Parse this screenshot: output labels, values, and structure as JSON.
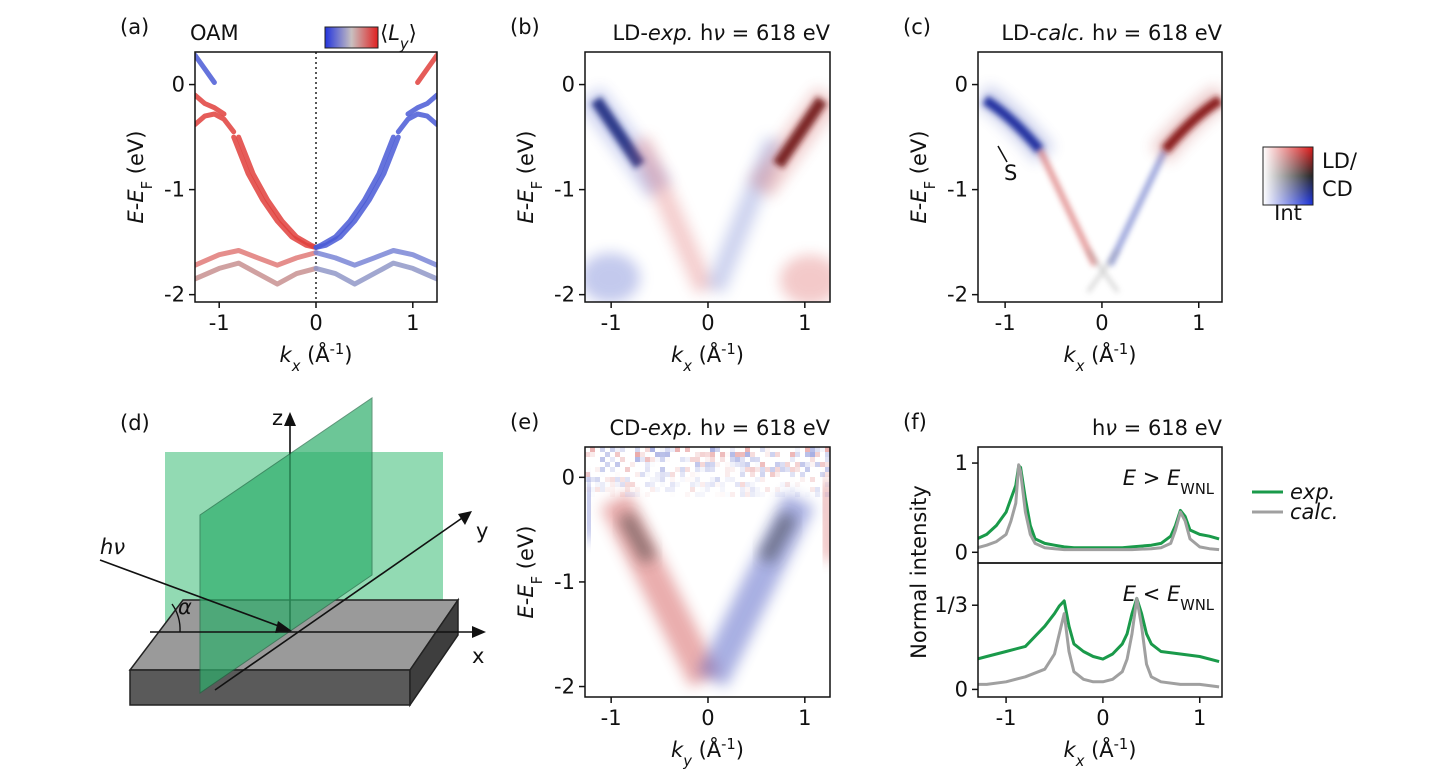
{
  "chart_data": [
    {
      "type": "line",
      "panel_label": "(a)",
      "title": "OAM",
      "colorbar_label": [
        {
          "t": "⟨"
        },
        {
          "t": "L",
          "it": true
        },
        {
          "t": "y",
          "it": true,
          "sub": true
        },
        {
          "t": "⟩"
        }
      ],
      "xlabel": [
        {
          "t": "k",
          "it": true
        },
        {
          "t": "x",
          "it": true,
          "sub": true
        },
        {
          "t": " (Å"
        },
        {
          "t": "-1",
          "sup": true
        },
        {
          "t": ")"
        }
      ],
      "ylabel": [
        {
          "t": "E",
          "it": true
        },
        {
          "t": "-"
        },
        {
          "t": "E",
          "it": true
        },
        {
          "t": "F",
          "sub": true
        },
        {
          "t": " (eV)"
        }
      ],
      "xlim": [
        -1.25,
        1.25
      ],
      "ylim": [
        -2.07,
        0.31
      ],
      "xticks": [
        -1,
        0,
        1
      ],
      "yticks": [
        -2,
        -1,
        0
      ],
      "series": [
        {
          "color": "#e0403c",
          "x": [
            -0.85,
            -0.7,
            -0.55,
            -0.4,
            -0.25,
            -0.1,
            0
          ],
          "values": [
            -0.5,
            -0.85,
            -1.1,
            -1.3,
            -1.45,
            -1.53,
            -1.55
          ]
        },
        {
          "color": "#e0403c",
          "x": [
            -0.8,
            -0.65,
            -0.5,
            -0.35,
            -0.2,
            -0.05,
            0
          ],
          "values": [
            -0.5,
            -0.85,
            -1.1,
            -1.3,
            -1.45,
            -1.53,
            -1.55
          ]
        },
        {
          "color": "#4a5bd6",
          "x": [
            0.85,
            0.7,
            0.55,
            0.4,
            0.25,
            0.1,
            0
          ],
          "values": [
            -0.5,
            -0.85,
            -1.1,
            -1.3,
            -1.45,
            -1.53,
            -1.55
          ]
        },
        {
          "color": "#4a5bd6",
          "x": [
            0.8,
            0.65,
            0.5,
            0.35,
            0.2,
            0.05,
            0
          ],
          "values": [
            -0.5,
            -0.85,
            -1.1,
            -1.3,
            -1.45,
            -1.53,
            -1.55
          ]
        },
        {
          "color": "#4a5bd6",
          "x": [
            -1.25,
            -1.15,
            -1.05
          ],
          "values": [
            0.28,
            0.15,
            0.02
          ]
        },
        {
          "color": "#e0403c",
          "x": [
            -1.25,
            -1.15,
            -1.05,
            -0.95
          ],
          "values": [
            -0.1,
            -0.18,
            -0.22,
            -0.28
          ]
        },
        {
          "color": "#e0403c",
          "x": [
            -1.25,
            -1.15,
            -1.05,
            -0.95,
            -0.85
          ],
          "values": [
            -0.38,
            -0.3,
            -0.28,
            -0.33,
            -0.45
          ]
        },
        {
          "color": "#e0403c",
          "x": [
            1.25,
            1.15,
            1.05
          ],
          "values": [
            0.28,
            0.15,
            0.02
          ]
        },
        {
          "color": "#4a5bd6",
          "x": [
            1.25,
            1.15,
            1.05,
            0.95
          ],
          "values": [
            -0.1,
            -0.18,
            -0.22,
            -0.28
          ]
        },
        {
          "color": "#4a5bd6",
          "x": [
            1.25,
            1.15,
            1.05,
            0.95,
            0.85
          ],
          "values": [
            -0.38,
            -0.3,
            -0.28,
            -0.33,
            -0.45
          ]
        },
        {
          "color": "#e07a78",
          "x": [
            -1.25,
            -1.0,
            -0.8,
            -0.6,
            -0.4,
            -0.2,
            0
          ],
          "values": [
            -1.72,
            -1.62,
            -1.58,
            -1.65,
            -1.72,
            -1.65,
            -1.6
          ]
        },
        {
          "color": "#c89090",
          "x": [
            -1.25,
            -1.0,
            -0.8,
            -0.6,
            -0.4,
            -0.2,
            0
          ],
          "values": [
            -1.85,
            -1.75,
            -1.7,
            -1.8,
            -1.9,
            -1.8,
            -1.75
          ]
        },
        {
          "color": "#7a86d6",
          "x": [
            1.25,
            1.0,
            0.8,
            0.6,
            0.4,
            0.2,
            0
          ],
          "values": [
            -1.72,
            -1.62,
            -1.58,
            -1.65,
            -1.72,
            -1.65,
            -1.6
          ]
        },
        {
          "color": "#9098c8",
          "x": [
            1.25,
            1.0,
            0.8,
            0.6,
            0.4,
            0.2,
            0
          ],
          "values": [
            -1.85,
            -1.75,
            -1.7,
            -1.8,
            -1.9,
            -1.8,
            -1.75
          ]
        }
      ]
    },
    {
      "type": "heatmap",
      "panel_label": "(b)",
      "title": [
        {
          "t": "LD-"
        },
        {
          "t": "exp.",
          "it": true
        },
        {
          "t": " h"
        },
        {
          "t": "ν",
          "it": true
        },
        {
          "t": " = 618 eV"
        }
      ],
      "xlabel": [
        {
          "t": "k",
          "it": true
        },
        {
          "t": "x",
          "it": true,
          "sub": true
        },
        {
          "t": " (Å"
        },
        {
          "t": "-1",
          "sup": true
        },
        {
          "t": ")"
        }
      ],
      "ylabel": [
        {
          "t": "E",
          "it": true
        },
        {
          "t": "-"
        },
        {
          "t": "E",
          "it": true
        },
        {
          "t": "F",
          "sub": true
        },
        {
          "t": " (eV)"
        }
      ],
      "xlim": [
        -1.27,
        1.26
      ],
      "ylim": [
        -2.07,
        0.31
      ],
      "xticks": [
        -1,
        0,
        1
      ],
      "yticks": [
        -2,
        -1,
        0
      ]
    },
    {
      "type": "heatmap",
      "panel_label": "(c)",
      "title": [
        {
          "t": "LD-"
        },
        {
          "t": "calc.",
          "it": true
        },
        {
          "t": " h"
        },
        {
          "t": "ν",
          "it": true
        },
        {
          "t": " = 618 eV"
        }
      ],
      "xlabel": [
        {
          "t": "k",
          "it": true
        },
        {
          "t": "x",
          "it": true,
          "sub": true
        },
        {
          "t": " (Å"
        },
        {
          "t": "-1",
          "sup": true
        },
        {
          "t": ")"
        }
      ],
      "ylabel": [
        {
          "t": "E",
          "it": true
        },
        {
          "t": "-"
        },
        {
          "t": "E",
          "it": true
        },
        {
          "t": "F",
          "sub": true
        },
        {
          "t": " (eV)"
        }
      ],
      "xlim": [
        -1.28,
        1.24
      ],
      "ylim": [
        -2.07,
        0.31
      ],
      "xticks": [
        -1,
        0,
        1
      ],
      "yticks": [
        -2,
        -1,
        0
      ],
      "annotation": "S",
      "colorbar_labels": [
        "LD/",
        "CD",
        "Int"
      ]
    },
    {
      "type": "heatmap",
      "panel_label": "(e)",
      "title": [
        {
          "t": "CD-"
        },
        {
          "t": "exp.",
          "it": true
        },
        {
          "t": " h"
        },
        {
          "t": "ν",
          "it": true
        },
        {
          "t": " = 618 eV"
        }
      ],
      "xlabel": [
        {
          "t": "k",
          "it": true
        },
        {
          "t": "y",
          "it": true,
          "sub": true
        },
        {
          "t": " (Å"
        },
        {
          "t": "-1",
          "sup": true
        },
        {
          "t": ")"
        }
      ],
      "ylabel": [
        {
          "t": "E",
          "it": true
        },
        {
          "t": "-"
        },
        {
          "t": "E",
          "it": true
        },
        {
          "t": "F",
          "sub": true
        },
        {
          "t": " (eV)"
        }
      ],
      "xlim": [
        -1.27,
        1.26
      ],
      "ylim": [
        -2.1,
        0.29
      ],
      "xticks": [
        -1,
        0,
        1
      ],
      "yticks": [
        -2,
        -1,
        0
      ]
    },
    {
      "type": "line",
      "panel_label": "(f)",
      "title": [
        {
          "t": "h"
        },
        {
          "t": "ν",
          "it": true
        },
        {
          "t": " = 618 eV"
        }
      ],
      "xlabel": [
        {
          "t": "k",
          "it": true
        },
        {
          "t": "x",
          "it": true,
          "sub": true
        },
        {
          "t": " (Å"
        },
        {
          "t": "-1",
          "sup": true
        },
        {
          "t": ")"
        }
      ],
      "ylabel": "Normal intensity",
      "xlim": [
        -1.29,
        1.23
      ],
      "xticks": [
        -1,
        0,
        1
      ],
      "series": [
        {
          "name": "exp.",
          "color": "#1a9a4a"
        },
        {
          "name": "calc.",
          "color": "#a0a0a0"
        }
      ],
      "subplots": [
        {
          "annotation": [
            {
              "t": "E",
              "it": true
            },
            {
              "t": " > "
            },
            {
              "t": "E",
              "it": true
            },
            {
              "t": "WNL",
              "sub": true
            }
          ],
          "ylim": [
            -0.12,
            1.18
          ],
          "yticks": [
            0,
            1
          ],
          "x": [
            -1.3,
            -1.2,
            -1.1,
            -1.0,
            -0.95,
            -0.9,
            -0.87,
            -0.85,
            -0.8,
            -0.75,
            -0.7,
            -0.6,
            -0.5,
            -0.4,
            -0.3,
            -0.2,
            -0.1,
            0,
            0.1,
            0.2,
            0.3,
            0.5,
            0.6,
            0.7,
            0.75,
            0.8,
            0.85,
            0.9,
            1.0,
            1.1,
            1.2
          ],
          "values": [
            [
              0.15,
              0.2,
              0.3,
              0.45,
              0.6,
              0.75,
              0.97,
              0.95,
              0.6,
              0.3,
              0.15,
              0.1,
              0.08,
              0.06,
              0.05,
              0.05,
              0.05,
              0.05,
              0.05,
              0.05,
              0.06,
              0.08,
              0.1,
              0.18,
              0.3,
              0.47,
              0.4,
              0.25,
              0.2,
              0.18,
              0.15
            ],
            [
              0.05,
              0.08,
              0.12,
              0.2,
              0.35,
              0.55,
              0.98,
              0.9,
              0.45,
              0.2,
              0.1,
              0.05,
              0.04,
              0.03,
              0.03,
              0.03,
              0.03,
              0.03,
              0.03,
              0.03,
              0.03,
              0.04,
              0.05,
              0.1,
              0.25,
              0.45,
              0.35,
              0.15,
              0.06,
              0.04,
              0.03
            ]
          ]
        },
        {
          "annotation": [
            {
              "t": "E",
              "it": true
            },
            {
              "t": " < "
            },
            {
              "t": "E",
              "it": true
            },
            {
              "t": "WNL",
              "sub": true
            }
          ],
          "ylim": [
            -0.03,
            0.5
          ],
          "yticks": [
            0,
            {
              "value": 0.333,
              "label": "1/3"
            }
          ],
          "x": [
            -1.3,
            -1.2,
            -1.0,
            -0.8,
            -0.6,
            -0.5,
            -0.45,
            -0.4,
            -0.35,
            -0.3,
            -0.2,
            -0.1,
            0,
            0.1,
            0.2,
            0.25,
            0.3,
            0.35,
            0.4,
            0.45,
            0.5,
            0.6,
            0.8,
            1.0,
            1.2
          ],
          "values": [
            [
              0.12,
              0.13,
              0.15,
              0.17,
              0.25,
              0.3,
              0.33,
              0.35,
              0.25,
              0.18,
              0.15,
              0.13,
              0.12,
              0.14,
              0.18,
              0.22,
              0.3,
              0.36,
              0.3,
              0.22,
              0.18,
              0.15,
              0.14,
              0.13,
              0.11
            ],
            [
              0.02,
              0.02,
              0.03,
              0.05,
              0.08,
              0.14,
              0.22,
              0.3,
              0.15,
              0.07,
              0.04,
              0.03,
              0.03,
              0.04,
              0.07,
              0.12,
              0.22,
              0.36,
              0.25,
              0.1,
              0.05,
              0.03,
              0.02,
              0.02,
              0.01
            ]
          ]
        }
      ]
    }
  ],
  "diagram": {
    "panel_label": "(d)",
    "labels": {
      "z": "z",
      "y": "y",
      "x": "x",
      "photon": [
        {
          "t": "h",
          "it": true
        },
        {
          "t": "ν",
          "it": true
        }
      ],
      "angle": "α"
    }
  }
}
